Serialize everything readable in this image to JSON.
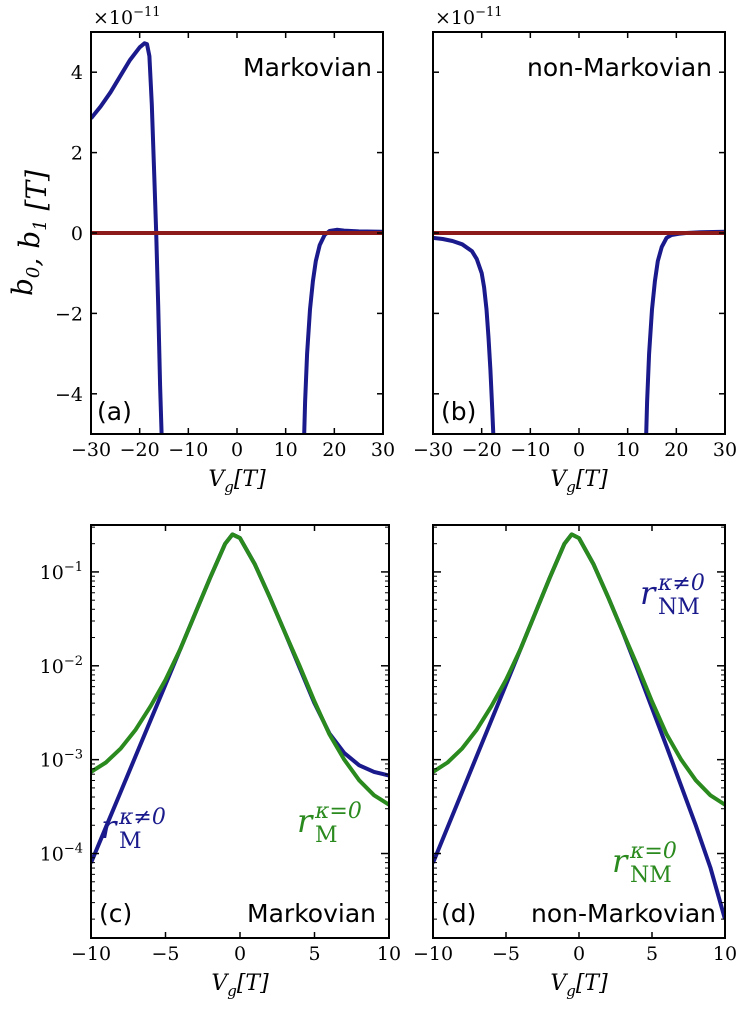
{
  "chart_data": [
    {
      "panel_label": "(a)",
      "title": "Markovian",
      "type": "line",
      "xlabel": "V_g [T]",
      "ylabel": "b_0, b_1 [T]",
      "xlim": [
        -30,
        30
      ],
      "ylim": [
        -5,
        5
      ],
      "y_scale_label": "×10^−11",
      "xticks": [
        "−30",
        "−20",
        "−10",
        "0",
        "10",
        "20",
        "30"
      ],
      "yticks": [
        "−4",
        "−2",
        "0",
        "2",
        "4"
      ],
      "series": [
        {
          "color": "#1a1a8c",
          "x": [
            -30,
            -28,
            -26,
            -24,
            -22,
            -20,
            -19,
            -18.5,
            -18,
            -17.5,
            -17,
            -16.6,
            -16.2,
            -15.8,
            -15.5
          ],
          "y": [
            2.85,
            3.15,
            3.5,
            3.9,
            4.3,
            4.62,
            4.72,
            4.7,
            4.4,
            3.2,
            1.4,
            0.0,
            -1.8,
            -3.8,
            -5.0
          ]
        },
        {
          "color": "#1a1a8c",
          "x": [
            13.8,
            14.0,
            14.4,
            15.0,
            15.6,
            16.2,
            17.0,
            18.0,
            19.0,
            20.5,
            22,
            25,
            30
          ],
          "y": [
            -5.0,
            -4.2,
            -3.0,
            -1.9,
            -1.2,
            -0.7,
            -0.3,
            -0.05,
            0.05,
            0.08,
            0.06,
            0.04,
            0.03
          ]
        },
        {
          "color": "#8c1a1a",
          "x": [
            -30,
            30
          ],
          "y": [
            0.0,
            0.0
          ]
        }
      ]
    },
    {
      "panel_label": "(b)",
      "title": "non-Markovian",
      "type": "line",
      "xlabel": "V_g [T]",
      "xlim": [
        -30,
        30
      ],
      "ylim": [
        -5,
        5
      ],
      "y_scale_label": "×10^−11",
      "xticks": [
        "−30",
        "−20",
        "−10",
        "0",
        "10",
        "20",
        "30"
      ],
      "series": [
        {
          "color": "#1a1a8c",
          "x": [
            -30,
            -28,
            -26,
            -24,
            -22,
            -21,
            -20,
            -19.5,
            -19,
            -18.6,
            -18.2,
            -17.9,
            -17.6
          ],
          "y": [
            -0.12,
            -0.15,
            -0.2,
            -0.28,
            -0.45,
            -0.65,
            -1.0,
            -1.35,
            -1.9,
            -2.6,
            -3.4,
            -4.2,
            -5.0
          ]
        },
        {
          "color": "#1a1a8c",
          "x": [
            13.8,
            14.0,
            14.4,
            15.0,
            15.6,
            16.2,
            17.0,
            18.0,
            19.0,
            20.5,
            22,
            25,
            30
          ],
          "y": [
            -5.0,
            -4.2,
            -3.0,
            -1.9,
            -1.2,
            -0.7,
            -0.35,
            -0.12,
            -0.05,
            -0.02,
            0.0,
            0.02,
            0.03
          ]
        },
        {
          "color": "#8c1a1a",
          "x": [
            -30,
            30
          ],
          "y": [
            0.0,
            0.0
          ]
        }
      ]
    },
    {
      "panel_label": "(c)",
      "title": "Markovian",
      "type": "line",
      "xlabel": "V_g [T]",
      "xlim": [
        -10,
        10
      ],
      "ylim": [
        -4.9,
        -0.5
      ],
      "ylog": true,
      "xticks": [
        "−10",
        "−5",
        "0",
        "5",
        "10"
      ],
      "yticks": [
        "10^−4",
        "10^−3",
        "10^−2",
        "10^−1"
      ],
      "series": [
        {
          "name": "r_M^{κ≠0}",
          "color": "#1a1a8c",
          "x": [
            -10,
            -9,
            -8,
            -7,
            -6,
            -5,
            -4,
            -3,
            -2,
            -1,
            -0.5,
            0,
            1,
            2,
            3,
            4,
            5,
            6,
            7,
            8,
            9,
            10
          ],
          "y": [
            -4.1,
            -3.72,
            -3.34,
            -2.96,
            -2.58,
            -2.2,
            -1.82,
            -1.44,
            -1.06,
            -0.7,
            -0.6,
            -0.64,
            -0.92,
            -1.27,
            -1.64,
            -2.02,
            -2.4,
            -2.72,
            -2.93,
            -3.06,
            -3.13,
            -3.17
          ]
        },
        {
          "name": "r_M^{κ=0}",
          "color": "#2a8a1e",
          "x": [
            -10,
            -9,
            -8,
            -7,
            -6,
            -5,
            -4,
            -3,
            -2,
            -1,
            -0.5,
            0,
            1,
            2,
            3,
            4,
            5,
            6,
            7,
            8,
            9,
            10
          ],
          "y": [
            -3.13,
            -3.03,
            -2.88,
            -2.68,
            -2.43,
            -2.15,
            -1.82,
            -1.44,
            -1.06,
            -0.7,
            -0.6,
            -0.64,
            -0.92,
            -1.27,
            -1.64,
            -2.0,
            -2.38,
            -2.73,
            -3.0,
            -3.22,
            -3.38,
            -3.48
          ]
        }
      ]
    },
    {
      "panel_label": "(d)",
      "title": "non-Markovian",
      "type": "line",
      "xlabel": "V_g [T]",
      "xlim": [
        -10,
        10
      ],
      "ylim": [
        -4.9,
        -0.5
      ],
      "ylog": true,
      "xticks": [
        "−10",
        "−5",
        "0",
        "5",
        "10"
      ],
      "series": [
        {
          "name": "r_NM^{κ≠0}",
          "color": "#1a1a8c",
          "x": [
            -10,
            -9,
            -8,
            -7,
            -6,
            -5,
            -4,
            -3,
            -2,
            -1,
            -0.5,
            0,
            1,
            2,
            3,
            4,
            5,
            6,
            7,
            8,
            9,
            10
          ],
          "y": [
            -4.1,
            -3.72,
            -3.34,
            -2.96,
            -2.58,
            -2.2,
            -1.82,
            -1.44,
            -1.06,
            -0.7,
            -0.6,
            -0.64,
            -0.92,
            -1.27,
            -1.64,
            -2.04,
            -2.45,
            -2.86,
            -3.28,
            -3.7,
            -4.15,
            -4.7
          ]
        },
        {
          "name": "r_NM^{κ=0}",
          "color": "#2a8a1e",
          "x": [
            -10,
            -9,
            -8,
            -7,
            -6,
            -5,
            -4,
            -3,
            -2,
            -1,
            -0.5,
            0,
            1,
            2,
            3,
            4,
            5,
            6,
            7,
            8,
            9,
            10
          ],
          "y": [
            -3.13,
            -3.03,
            -2.88,
            -2.68,
            -2.43,
            -2.15,
            -1.82,
            -1.44,
            -1.06,
            -0.7,
            -0.6,
            -0.64,
            -0.92,
            -1.27,
            -1.64,
            -2.0,
            -2.38,
            -2.73,
            -3.0,
            -3.22,
            -3.38,
            -3.48
          ]
        }
      ]
    }
  ]
}
